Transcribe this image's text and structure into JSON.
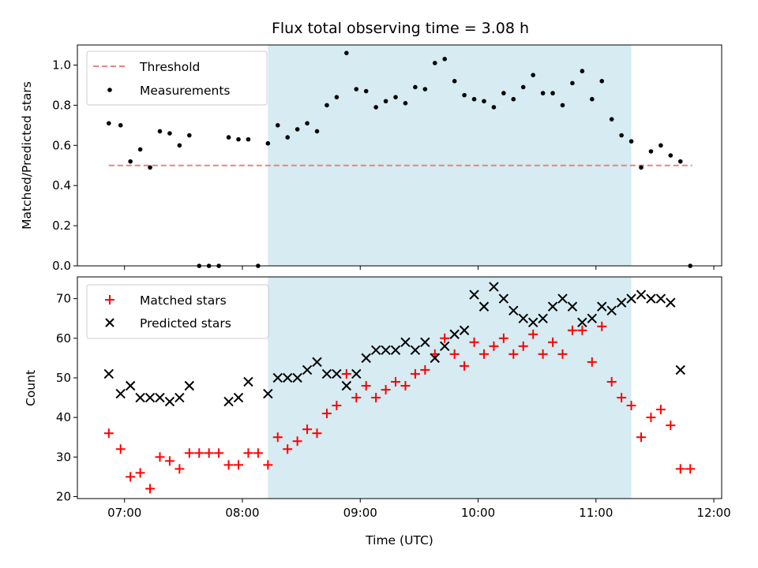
{
  "chart_data": [
    {
      "type": "scatter",
      "title": "Flux total observing time = 3.08 h",
      "xlabel": "",
      "ylabel": "Matched/Predicted stars",
      "xlim": [
        "06:36",
        "12:04"
      ],
      "ylim": [
        0.0,
        1.1
      ],
      "yticks": [
        "0.0",
        "0.2",
        "0.4",
        "0.6",
        "0.8",
        "1.0"
      ],
      "xticks": [
        "07:00",
        "08:00",
        "09:00",
        "10:00",
        "11:00",
        "12:00"
      ],
      "shaded_span": [
        "08:13",
        "11:18"
      ],
      "threshold": {
        "name": "Threshold",
        "y": 0.5,
        "x_range": [
          "06:52",
          "11:49"
        ],
        "color": "#f08080"
      },
      "legend_position": "upper-left",
      "series": [
        {
          "name": "Measurements",
          "color": "#000000",
          "points": [
            [
              "06:52",
              0.71
            ],
            [
              "06:58",
              0.7
            ],
            [
              "07:03",
              0.52
            ],
            [
              "07:08",
              0.58
            ],
            [
              "07:13",
              0.49
            ],
            [
              "07:18",
              0.67
            ],
            [
              "07:23",
              0.66
            ],
            [
              "07:28",
              0.6
            ],
            [
              "07:33",
              0.65
            ],
            [
              "07:38",
              0.0
            ],
            [
              "07:43",
              0.0
            ],
            [
              "07:48",
              0.0
            ],
            [
              "07:53",
              0.64
            ],
            [
              "07:58",
              0.63
            ],
            [
              "08:03",
              0.63
            ],
            [
              "08:08",
              0.0
            ],
            [
              "08:13",
              0.61
            ],
            [
              "08:18",
              0.7
            ],
            [
              "08:23",
              0.64
            ],
            [
              "08:28",
              0.68
            ],
            [
              "08:33",
              0.71
            ],
            [
              "08:38",
              0.67
            ],
            [
              "08:43",
              0.8
            ],
            [
              "08:48",
              0.84
            ],
            [
              "08:53",
              1.06
            ],
            [
              "08:58",
              0.88
            ],
            [
              "09:03",
              0.87
            ],
            [
              "09:08",
              0.79
            ],
            [
              "09:13",
              0.82
            ],
            [
              "09:18",
              0.84
            ],
            [
              "09:23",
              0.81
            ],
            [
              "09:28",
              0.89
            ],
            [
              "09:33",
              0.88
            ],
            [
              "09:38",
              1.01
            ],
            [
              "09:43",
              1.03
            ],
            [
              "09:48",
              0.92
            ],
            [
              "09:53",
              0.85
            ],
            [
              "09:58",
              0.83
            ],
            [
              "10:03",
              0.82
            ],
            [
              "10:08",
              0.79
            ],
            [
              "10:13",
              0.86
            ],
            [
              "10:18",
              0.83
            ],
            [
              "10:23",
              0.89
            ],
            [
              "10:28",
              0.95
            ],
            [
              "10:33",
              0.86
            ],
            [
              "10:38",
              0.86
            ],
            [
              "10:43",
              0.8
            ],
            [
              "10:48",
              0.91
            ],
            [
              "10:53",
              0.97
            ],
            [
              "10:58",
              0.83
            ],
            [
              "11:03",
              0.92
            ],
            [
              "11:08",
              0.73
            ],
            [
              "11:13",
              0.65
            ],
            [
              "11:18",
              0.62
            ],
            [
              "11:23",
              0.49
            ],
            [
              "11:28",
              0.57
            ],
            [
              "11:33",
              0.6
            ],
            [
              "11:38",
              0.55
            ],
            [
              "11:43",
              0.52
            ],
            [
              "11:48",
              0.0
            ]
          ]
        }
      ]
    },
    {
      "type": "scatter",
      "title": "",
      "xlabel": "Time (UTC)",
      "ylabel": "Count",
      "xlim": [
        "06:36",
        "12:04"
      ],
      "ylim": [
        19.5,
        75.5
      ],
      "yticks": [
        "20",
        "30",
        "40",
        "50",
        "60",
        "70"
      ],
      "xticks": [
        "07:00",
        "08:00",
        "09:00",
        "10:00",
        "11:00",
        "12:00"
      ],
      "shaded_span": [
        "08:13",
        "11:18"
      ],
      "legend_position": "upper-left",
      "series": [
        {
          "name": "Matched stars",
          "marker": "plus",
          "color": "#ff0000",
          "points": [
            [
              "06:52",
              36
            ],
            [
              "06:58",
              32
            ],
            [
              "07:03",
              25
            ],
            [
              "07:08",
              26
            ],
            [
              "07:13",
              22
            ],
            [
              "07:18",
              30
            ],
            [
              "07:23",
              29
            ],
            [
              "07:28",
              27
            ],
            [
              "07:33",
              31
            ],
            [
              "07:38",
              31
            ],
            [
              "07:43",
              31
            ],
            [
              "07:48",
              31
            ],
            [
              "07:53",
              28
            ],
            [
              "07:58",
              28
            ],
            [
              "08:03",
              31
            ],
            [
              "08:08",
              31
            ],
            [
              "08:13",
              28
            ],
            [
              "08:18",
              35
            ],
            [
              "08:23",
              32
            ],
            [
              "08:28",
              34
            ],
            [
              "08:33",
              37
            ],
            [
              "08:38",
              36
            ],
            [
              "08:43",
              41
            ],
            [
              "08:48",
              43
            ],
            [
              "08:53",
              51
            ],
            [
              "08:58",
              45
            ],
            [
              "09:03",
              48
            ],
            [
              "09:08",
              45
            ],
            [
              "09:13",
              47
            ],
            [
              "09:18",
              49
            ],
            [
              "09:23",
              48
            ],
            [
              "09:28",
              51
            ],
            [
              "09:33",
              52
            ],
            [
              "09:38",
              56
            ],
            [
              "09:43",
              60
            ],
            [
              "09:48",
              56
            ],
            [
              "09:53",
              53
            ],
            [
              "09:58",
              59
            ],
            [
              "10:03",
              56
            ],
            [
              "10:08",
              58
            ],
            [
              "10:13",
              60
            ],
            [
              "10:18",
              56
            ],
            [
              "10:23",
              58
            ],
            [
              "10:28",
              61
            ],
            [
              "10:33",
              56
            ],
            [
              "10:38",
              59
            ],
            [
              "10:43",
              56
            ],
            [
              "10:48",
              62
            ],
            [
              "10:53",
              62
            ],
            [
              "10:58",
              54
            ],
            [
              "11:03",
              63
            ],
            [
              "11:08",
              49
            ],
            [
              "11:13",
              45
            ],
            [
              "11:18",
              43
            ],
            [
              "11:23",
              35
            ],
            [
              "11:28",
              40
            ],
            [
              "11:33",
              42
            ],
            [
              "11:38",
              38
            ],
            [
              "11:43",
              27
            ],
            [
              "11:48",
              27
            ]
          ]
        },
        {
          "name": "Predicted stars",
          "marker": "x",
          "color": "#000000",
          "points": [
            [
              "06:52",
              51
            ],
            [
              "06:58",
              46
            ],
            [
              "07:03",
              48
            ],
            [
              "07:08",
              45
            ],
            [
              "07:13",
              45
            ],
            [
              "07:18",
              45
            ],
            [
              "07:23",
              44
            ],
            [
              "07:28",
              45
            ],
            [
              "07:33",
              48
            ],
            [
              "07:53",
              44
            ],
            [
              "07:58",
              45
            ],
            [
              "08:03",
              49
            ],
            [
              "08:13",
              46
            ],
            [
              "08:18",
              50
            ],
            [
              "08:23",
              50
            ],
            [
              "08:28",
              50
            ],
            [
              "08:33",
              52
            ],
            [
              "08:38",
              54
            ],
            [
              "08:43",
              51
            ],
            [
              "08:48",
              51
            ],
            [
              "08:53",
              48
            ],
            [
              "08:58",
              51
            ],
            [
              "09:03",
              55
            ],
            [
              "09:08",
              57
            ],
            [
              "09:13",
              57
            ],
            [
              "09:18",
              57
            ],
            [
              "09:23",
              59
            ],
            [
              "09:28",
              57
            ],
            [
              "09:33",
              59
            ],
            [
              "09:38",
              55
            ],
            [
              "09:43",
              58
            ],
            [
              "09:48",
              61
            ],
            [
              "09:53",
              62
            ],
            [
              "09:58",
              71
            ],
            [
              "10:03",
              68
            ],
            [
              "10:08",
              73
            ],
            [
              "10:13",
              70
            ],
            [
              "10:18",
              67
            ],
            [
              "10:23",
              65
            ],
            [
              "10:28",
              64
            ],
            [
              "10:33",
              65
            ],
            [
              "10:38",
              68
            ],
            [
              "10:43",
              70
            ],
            [
              "10:48",
              68
            ],
            [
              "10:53",
              64
            ],
            [
              "10:58",
              65
            ],
            [
              "11:03",
              68
            ],
            [
              "11:08",
              67
            ],
            [
              "11:13",
              69
            ],
            [
              "11:18",
              70
            ],
            [
              "11:23",
              71
            ],
            [
              "11:28",
              70
            ],
            [
              "11:33",
              70
            ],
            [
              "11:38",
              69
            ],
            [
              "11:43",
              52
            ]
          ]
        }
      ]
    }
  ],
  "colors": {
    "shade": "#add8e6",
    "threshold": "#f08080",
    "matched": "#ff0000",
    "predicted": "#000000",
    "measurements": "#000000"
  }
}
